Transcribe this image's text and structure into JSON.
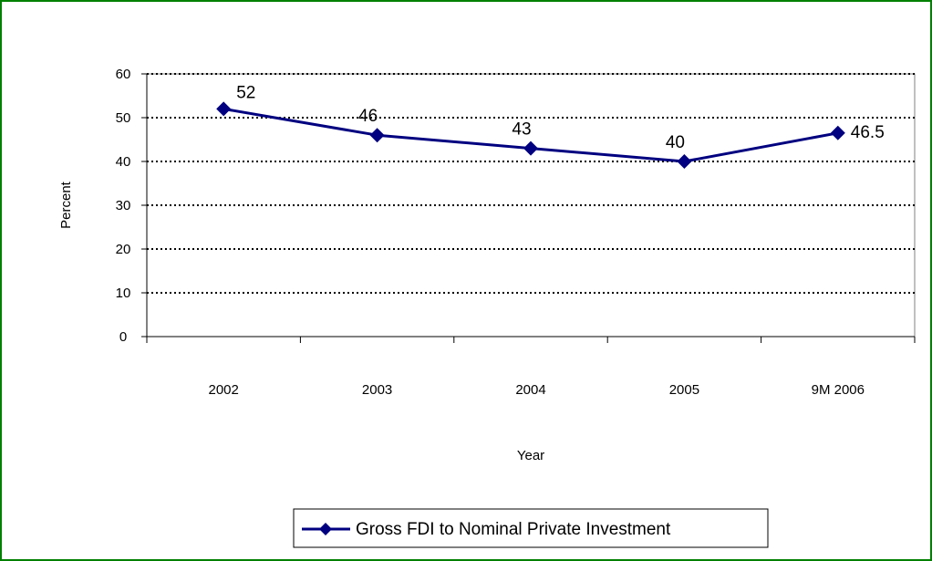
{
  "chart_data": {
    "type": "line",
    "title": "",
    "xlabel": "Year",
    "ylabel": "Percent",
    "ylim": [
      0,
      60
    ],
    "yticks": [
      0,
      10,
      20,
      30,
      40,
      50,
      60
    ],
    "categories": [
      "2002",
      "2003",
      "2004",
      "2005",
      "9M 2006"
    ],
    "series": [
      {
        "name": "Gross FDI to Nominal Private Investment",
        "values": [
          52,
          46,
          43,
          40,
          46.5
        ],
        "labels": [
          "52",
          "46",
          "43",
          "40",
          "46.5"
        ]
      }
    ],
    "grid": "horizontal dotted",
    "legend": "bottom-center",
    "colors": {
      "series": "#000080",
      "frame": "#008000",
      "grid": "#000000"
    }
  }
}
